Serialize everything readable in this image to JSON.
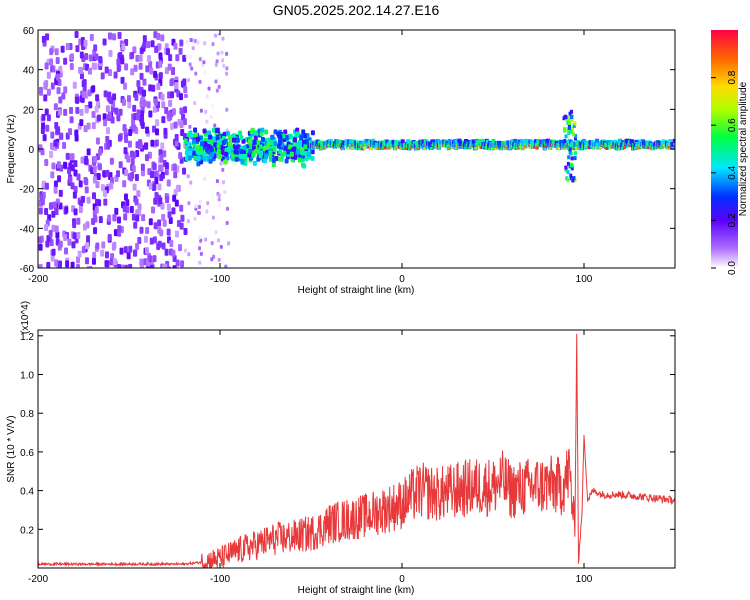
{
  "title": "GN05.2025.202.14.27.E16",
  "chart_data": [
    {
      "type": "heatmap",
      "title": "GN05.2025.202.14.27.E16",
      "xlabel": "Height of straight line (km)",
      "ylabel": "Frequency (Hz)",
      "xlim": [
        -200,
        150
      ],
      "ylim": [
        -60,
        60
      ],
      "x_ticks": [
        -200,
        -100,
        0,
        100
      ],
      "y_ticks": [
        -60,
        -40,
        -20,
        0,
        20,
        40,
        60
      ],
      "colorbar": {
        "label": "Normalized spectral amplitude",
        "range": [
          0,
          1
        ],
        "ticks": [
          0.0,
          0.2,
          0.4,
          0.6,
          0.8
        ]
      },
      "regions": [
        {
          "x_range": [
            -200,
            -120
          ],
          "freq_range": [
            -60,
            60
          ],
          "amplitude": [
            0.05,
            0.2
          ],
          "pattern": "scattered noise"
        },
        {
          "x_range": [
            -120,
            -96
          ],
          "freq_range": [
            -60,
            60
          ],
          "amplitude": [
            0.0,
            0.1
          ],
          "pattern": "faint scattered noise"
        },
        {
          "x_range": [
            -120,
            -50
          ],
          "freq_range": [
            -10,
            10
          ],
          "amplitude": [
            0.2,
            0.6
          ],
          "pattern": "band"
        },
        {
          "x_range": [
            -50,
            150
          ],
          "freq_range": [
            -3,
            5
          ],
          "amplitude": [
            0.4,
            1.0
          ],
          "pattern": "narrow band near 0 Hz"
        },
        {
          "x_range": [
            88,
            95
          ],
          "freq_range": [
            -15,
            20
          ],
          "amplitude": [
            0.2,
            0.7
          ],
          "pattern": "spread feature"
        }
      ]
    },
    {
      "type": "line",
      "xlabel": "Height of straight line (km)",
      "ylabel": "SNR (10 * V/V)",
      "y_multiplier": "(x10^4)",
      "xlim": [
        -200,
        150
      ],
      "ylim": [
        0,
        1.23
      ],
      "x_ticks": [
        -200,
        -100,
        0,
        100
      ],
      "y_ticks": [
        0.2,
        0.4,
        0.6,
        0.8,
        1.0,
        1.2
      ],
      "color": "#e8393a",
      "series": [
        {
          "x": [
            -200,
            -180,
            -160,
            -140,
            -120,
            -110,
            -100,
            -90,
            -80,
            -70,
            -60,
            -50,
            -45,
            -40,
            -30,
            -20,
            -10,
            0,
            5,
            10,
            20,
            30,
            40,
            50,
            55,
            60,
            70,
            80,
            88,
            92,
            95,
            96,
            97,
            99,
            100,
            102,
            105,
            110,
            120,
            130,
            140,
            150
          ],
          "y": [
            0.02,
            0.02,
            0.02,
            0.02,
            0.02,
            0.03,
            0.05,
            0.09,
            0.12,
            0.15,
            0.16,
            0.18,
            0.2,
            0.23,
            0.25,
            0.27,
            0.3,
            0.33,
            0.37,
            0.4,
            0.38,
            0.4,
            0.42,
            0.42,
            0.45,
            0.4,
            0.42,
            0.43,
            0.42,
            0.5,
            0.18,
            1.2,
            0.03,
            0.3,
            0.7,
            0.35,
            0.4,
            0.38,
            0.38,
            0.37,
            0.36,
            0.35
          ]
        }
      ]
    }
  ]
}
